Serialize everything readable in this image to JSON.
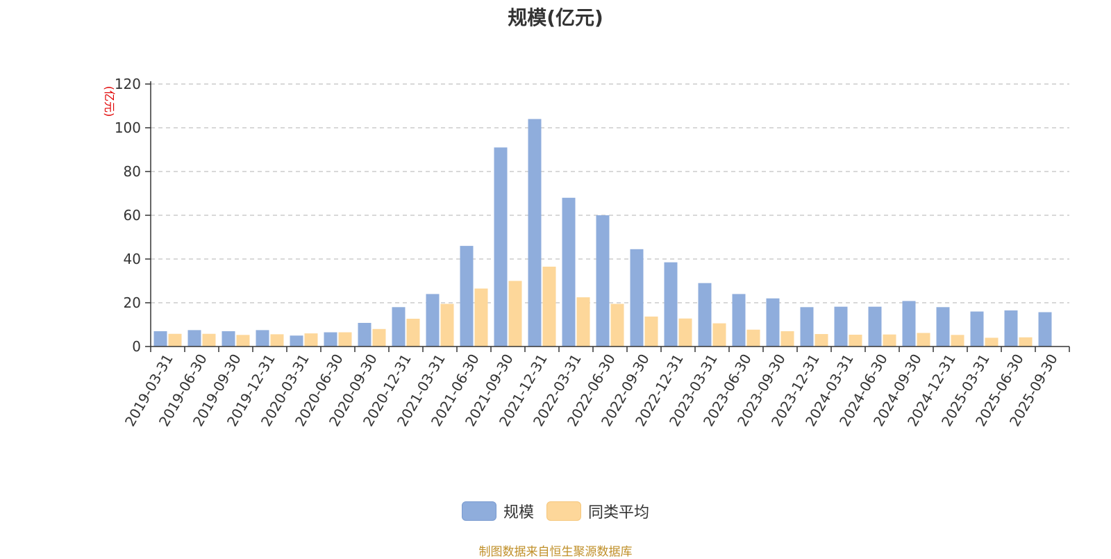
{
  "chart_data": {
    "type": "bar",
    "title": "规模(亿元)",
    "ylabel": "(亿元)",
    "ylim": [
      0,
      120
    ],
    "yticks": [
      0,
      20,
      40,
      60,
      80,
      100,
      120
    ],
    "grid": true,
    "legend_position": "bottom",
    "categories": [
      "2019-03-31",
      "2019-06-30",
      "2019-09-30",
      "2019-12-31",
      "2020-03-31",
      "2020-06-30",
      "2020-09-30",
      "2020-12-31",
      "2021-03-31",
      "2021-06-30",
      "2021-09-30",
      "2021-12-31",
      "2022-03-31",
      "2022-06-30",
      "2022-09-30",
      "2022-12-31",
      "2023-03-31",
      "2023-06-30",
      "2023-09-30",
      "2023-12-31",
      "2024-03-31",
      "2024-06-30",
      "2024-09-30",
      "2024-12-31",
      "2025-03-31",
      "2025-06-30",
      "2025-09-30"
    ],
    "series": [
      {
        "name": "规模",
        "color": "#8faddc",
        "values": [
          7.0,
          7.5,
          7.0,
          7.5,
          5.0,
          6.5,
          10.8,
          18.0,
          24.0,
          46.0,
          91.0,
          104.0,
          68.0,
          60.0,
          44.5,
          38.5,
          29.0,
          24.0,
          22.0,
          18.0,
          18.2,
          18.2,
          20.8,
          18.0,
          16.0,
          16.5,
          15.7
        ]
      },
      {
        "name": "同类平均",
        "color": "#fdd79a",
        "values": [
          5.8,
          5.8,
          5.3,
          5.6,
          6.0,
          6.5,
          8.0,
          12.7,
          19.5,
          26.5,
          30.0,
          36.5,
          22.5,
          19.5,
          13.7,
          12.8,
          10.6,
          7.7,
          7.0,
          5.7,
          5.4,
          5.5,
          6.2,
          5.3,
          4.0,
          4.2,
          null
        ]
      }
    ]
  },
  "source_note": "制图数据来自恒生聚源数据库"
}
